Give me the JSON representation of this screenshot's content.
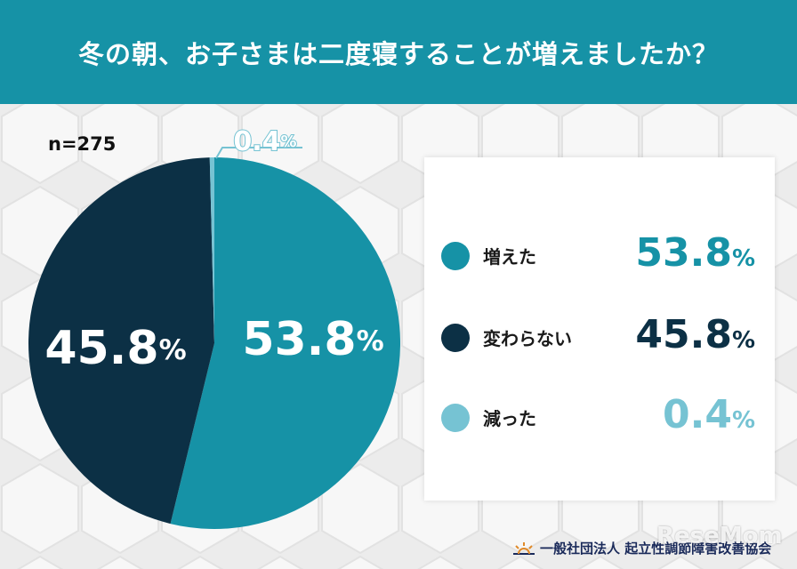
{
  "header": {
    "title": "冬の朝、お子さまは二度寝することが増えましたか？"
  },
  "sample_label": "n=275",
  "colors": {
    "header_bg": "#1692a6",
    "increased": "#1692a6",
    "unchanged": "#0c3045",
    "decreased": "#76c3d3"
  },
  "chart_data": {
    "type": "pie",
    "title": "冬の朝、お子さまは二度寝することが増えましたか？",
    "slices": [
      {
        "label": "増えた",
        "value": 53.8,
        "display": "53.8",
        "color": "#1692a6",
        "text_color": "#1692a6"
      },
      {
        "label": "変わらない",
        "value": 45.8,
        "display": "45.8",
        "color": "#0c3045",
        "text_color": "#0c3045"
      },
      {
        "label": "減った",
        "value": 0.4,
        "display": "0.4",
        "color": "#76c3d3",
        "text_color": "#76c3d3"
      }
    ],
    "unit": "%",
    "legend_position": "right"
  },
  "legend": {
    "items": [
      {
        "label": "増えた",
        "value": "53.8"
      },
      {
        "label": "変わらない",
        "value": "45.8"
      },
      {
        "label": "減った",
        "value": "0.4"
      }
    ],
    "unit": "%"
  },
  "footer": {
    "org": "一般社団法人 起立性調節障害改善協会",
    "icon": "sunrise-icon"
  },
  "watermark": "ReseMom"
}
